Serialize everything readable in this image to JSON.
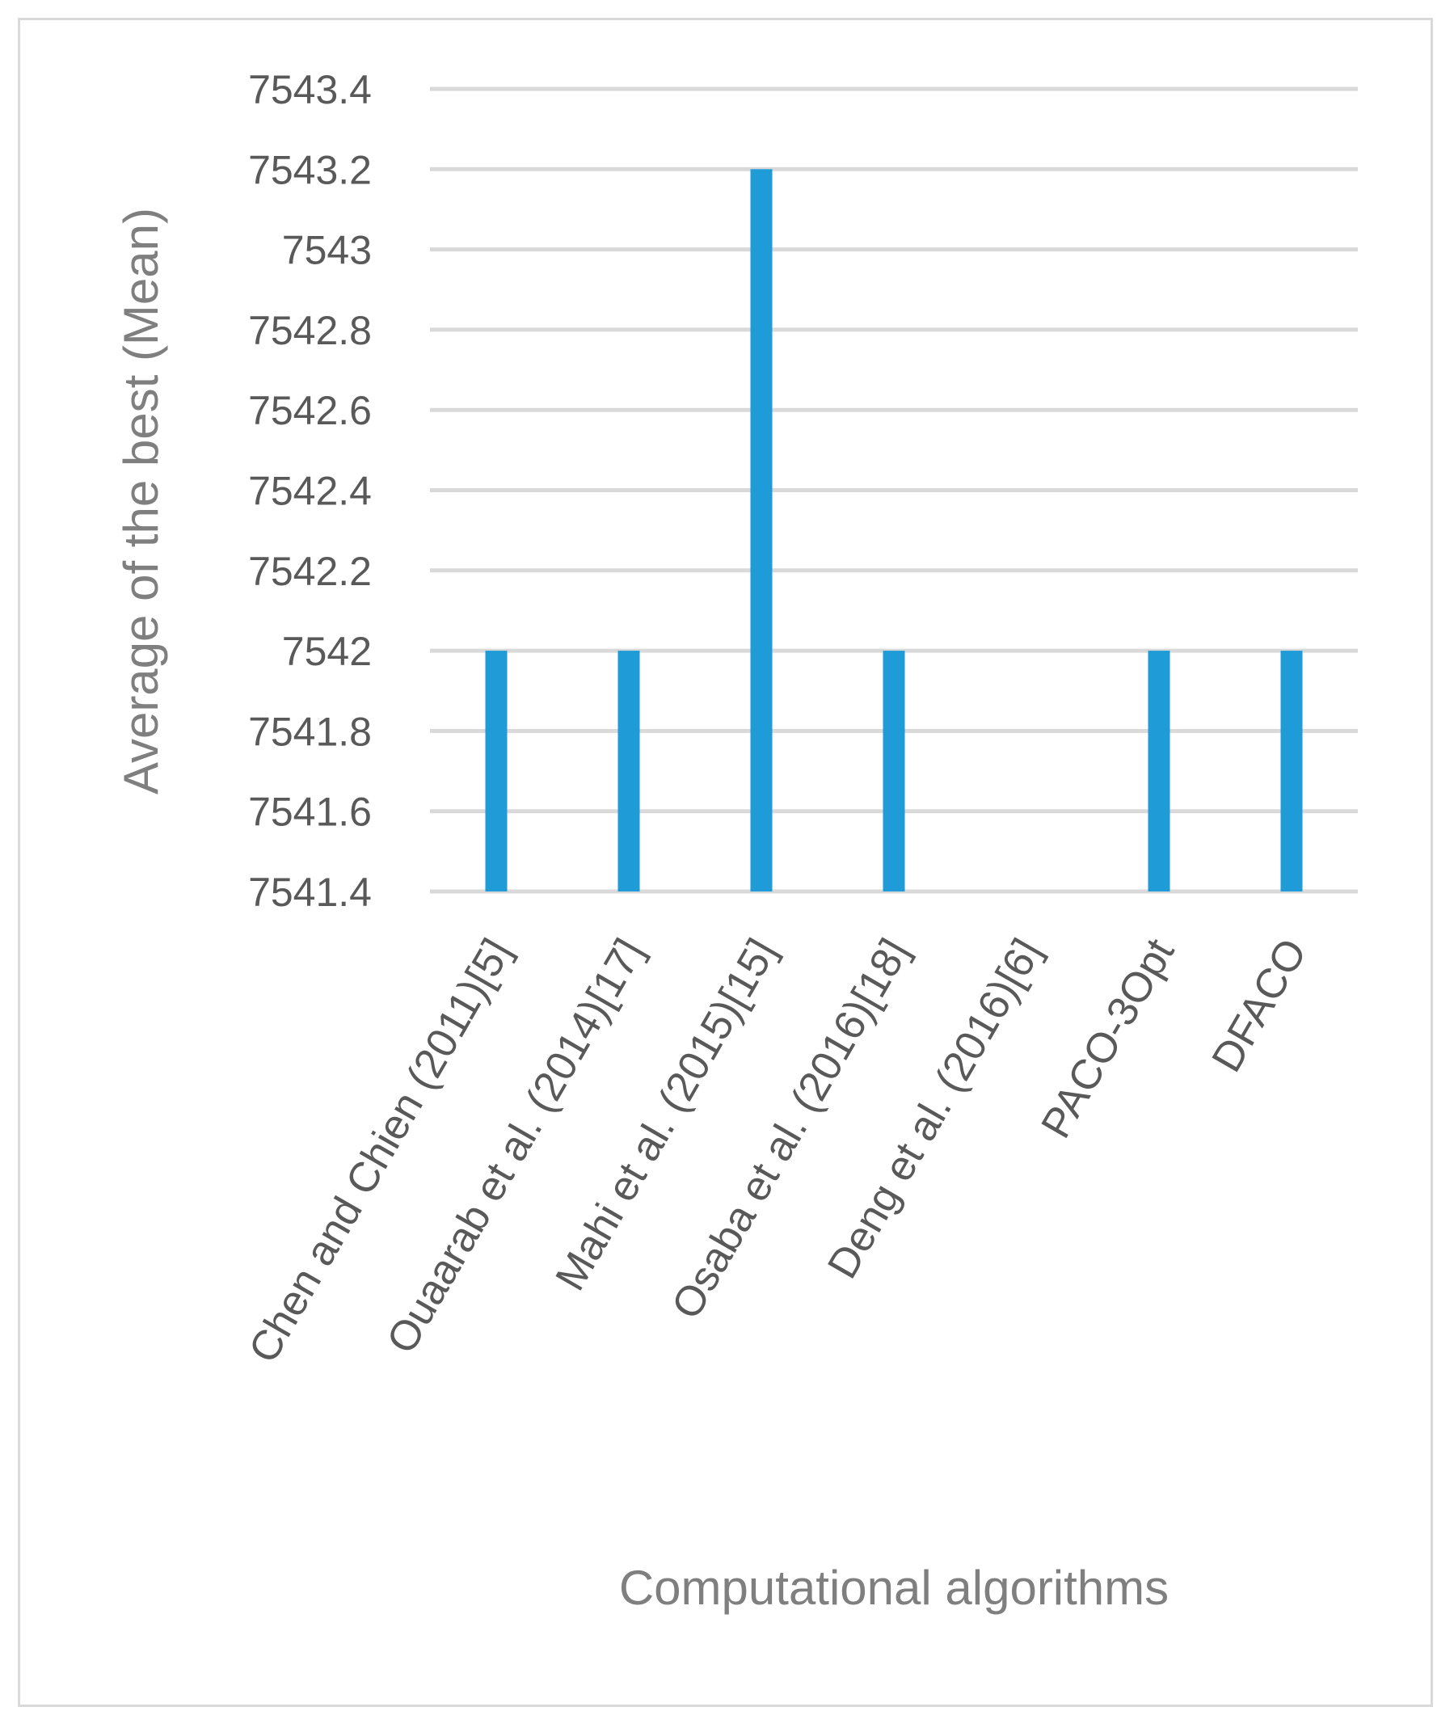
{
  "chart_data": {
    "type": "bar",
    "title": "",
    "xlabel": "Computational algorithms",
    "ylabel": "Average of the best  (Mean)",
    "ylim": [
      7541.4,
      7543.4
    ],
    "yticks": [
      "7541.4",
      "7541.6",
      "7541.8",
      "7542",
      "7542.2",
      "7542.4",
      "7542.6",
      "7542.8",
      "7543",
      "7543.2",
      "7543.4"
    ],
    "grid": true,
    "legend": "none",
    "categories": [
      "Chen and Chien (2011)[5]",
      "Ouaarab et al. (2014)[17]",
      "Mahi et al. (2015)[15]",
      "Osaba et al. (2016)[18]",
      "Deng et al. (2016)[6]",
      "PACO-3Opt",
      "DFACO"
    ],
    "values": [
      7542,
      7542,
      7543.2,
      7542,
      null,
      7542,
      7542
    ],
    "bar_color": "#1f9bd7"
  }
}
